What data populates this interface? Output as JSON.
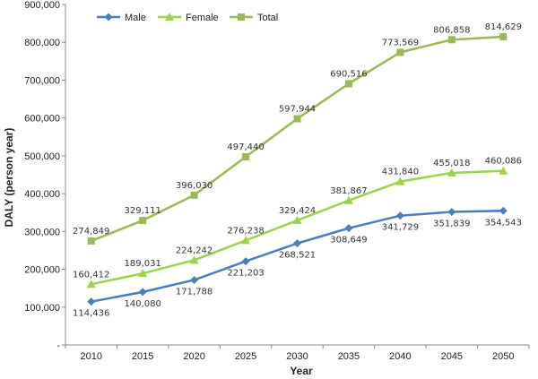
{
  "chart_data": {
    "type": "line",
    "categories": [
      "2010",
      "2015",
      "2020",
      "2025",
      "2030",
      "2035",
      "2040",
      "2045",
      "2050"
    ],
    "series": [
      {
        "name": "Male",
        "color": "#4A7EBB",
        "marker": "diamond",
        "values": [
          114436,
          140080,
          171788,
          221203,
          268521,
          308649,
          341729,
          351839,
          354543
        ],
        "labels": [
          "114,436",
          "140,080",
          "171,788",
          "221,203",
          "268,521",
          "308,649",
          "341,729",
          "351,839",
          "354,543"
        ],
        "label_position": "below"
      },
      {
        "name": "Female",
        "color": "#9BD44A",
        "marker": "triangle",
        "values": [
          160412,
          189031,
          224242,
          276238,
          329424,
          381867,
          431840,
          455018,
          460086
        ],
        "labels": [
          "160,412",
          "189,031",
          "224,242",
          "276,238",
          "329,424",
          "381,867",
          "431,840",
          "455,018",
          "460,086"
        ],
        "label_position": "above"
      },
      {
        "name": "Total",
        "color": "#98B954",
        "marker": "square",
        "values": [
          274849,
          329111,
          396030,
          497440,
          597944,
          690516,
          773569,
          806858,
          814629
        ],
        "labels": [
          "274,849",
          "329,111",
          "396,030",
          "497,440",
          "597,944",
          "690,516",
          "773,569",
          "806,858",
          "814,629"
        ],
        "label_position": "above"
      }
    ],
    "xlabel": "Year",
    "ylabel": "DALY (person year)",
    "ylim": [
      0,
      900000
    ],
    "yticks": [
      0,
      100000,
      200000,
      300000,
      400000,
      500000,
      600000,
      700000,
      800000,
      900000
    ],
    "ytick_labels": [
      "-",
      "100,000",
      "200,000",
      "300,000",
      "400,000",
      "500,000",
      "600,000",
      "700,000",
      "800,000",
      "900,000"
    ],
    "grid": false,
    "legend_position": "top-left"
  }
}
